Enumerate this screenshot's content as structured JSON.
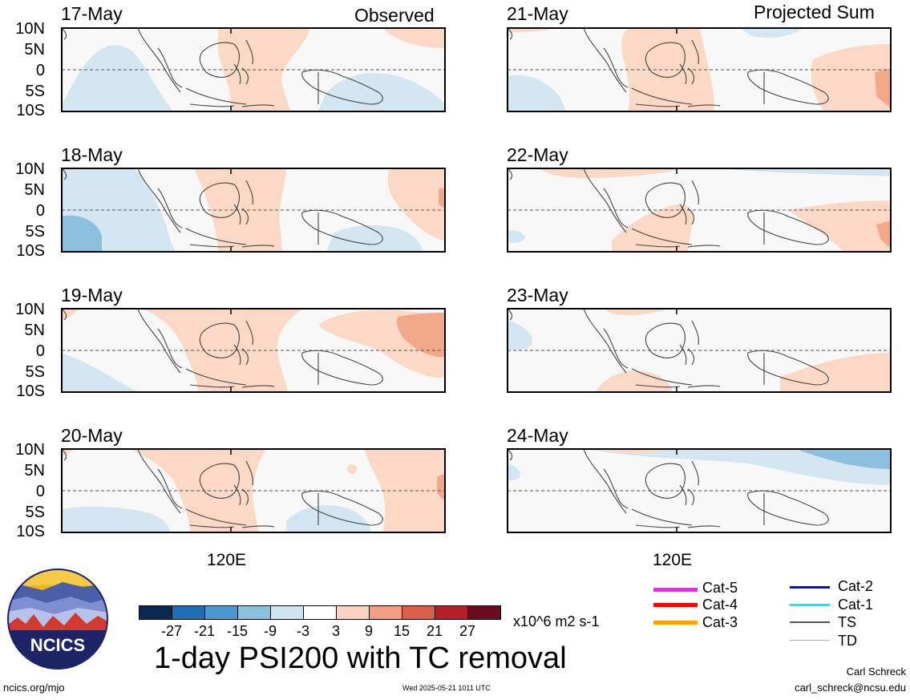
{
  "header": {
    "left_label": "Observed",
    "right_label": "Projected Sum"
  },
  "panels": [
    {
      "date": "17-May",
      "column": "left",
      "row": 0
    },
    {
      "date": "18-May",
      "column": "left",
      "row": 1
    },
    {
      "date": "19-May",
      "column": "left",
      "row": 2
    },
    {
      "date": "20-May",
      "column": "left",
      "row": 3
    },
    {
      "date": "21-May",
      "column": "right",
      "row": 0
    },
    {
      "date": "22-May",
      "column": "right",
      "row": 1
    },
    {
      "date": "23-May",
      "column": "right",
      "row": 2
    },
    {
      "date": "24-May",
      "column": "right",
      "row": 3
    }
  ],
  "lat_labels": [
    "10N",
    "5N",
    "0",
    "5S",
    "10S"
  ],
  "lon_label": "120E",
  "colorbar": {
    "ticks": [
      "-27",
      "-21",
      "-15",
      "-9",
      "-3",
      "3",
      "9",
      "15",
      "21",
      "27"
    ],
    "colors": [
      "#0b2a52",
      "#1f6fb7",
      "#4a98cf",
      "#8dbfdf",
      "#cfe3f1",
      "#ffffff",
      "#fbd3c0",
      "#f29f80",
      "#da5f4a",
      "#b51f2a",
      "#6a0e1f"
    ],
    "units": "x10^6 m2 s-1"
  },
  "title": "1-day PSI200 with TC removal",
  "footer": {
    "url": "ncics.org/mjo",
    "timestamp": "Wed 2025-05-21 1011 UTC",
    "author": "Carl Schreck",
    "email": "carl_schreck@ncsu.edu"
  },
  "logo": {
    "text": "NCICS"
  },
  "legend": [
    {
      "label": "Cat-5",
      "color": "#ff1ef0"
    },
    {
      "label": "Cat-4",
      "color": "#ff0000"
    },
    {
      "label": "Cat-3",
      "color": "#ffa500"
    },
    {
      "label": "Cat-2",
      "color": "#0010d0"
    },
    {
      "label": "Cat-1",
      "color": "#00f0ff"
    },
    {
      "label": "TS",
      "color": "#555555"
    },
    {
      "label": "TD",
      "color": "#aaaaaa"
    }
  ]
}
